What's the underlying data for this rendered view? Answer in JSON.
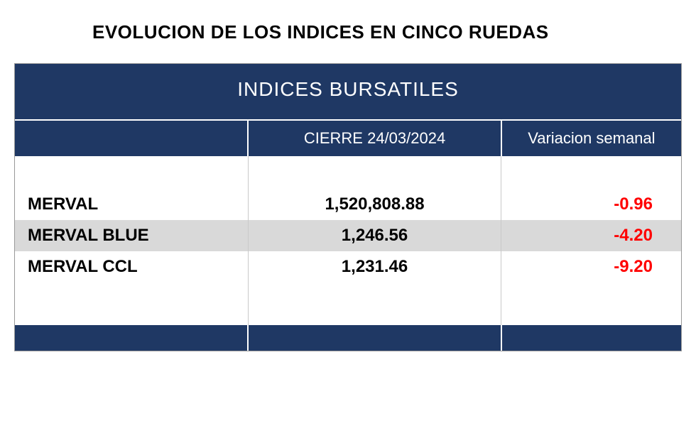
{
  "title": "EVOLUCION DE LOS INDICES EN CINCO RUEDAS",
  "table": {
    "type": "table",
    "title": "INDICES BURSATILES",
    "background_color": "#ffffff",
    "header_bg": "#1f3864",
    "header_fg": "#ffffff",
    "alt_row_bg": "#d9d9d9",
    "negative_color": "#ff0000",
    "grid_color": "#c9c9c9",
    "title_fontsize": 28,
    "header_fontsize": 22,
    "cell_fontsize": 24,
    "columns": [
      {
        "key": "name",
        "label": "",
        "width_pct": 35,
        "align": "left"
      },
      {
        "key": "close",
        "label": "CIERRE 24/03/2024",
        "width_pct": 38,
        "align": "center"
      },
      {
        "key": "variation",
        "label": "Variacion semanal",
        "width_pct": 27,
        "align": "right"
      }
    ],
    "rows": [
      {
        "name": "MERVAL",
        "close": "1,520,808.88",
        "variation": "-0.96",
        "alt": false
      },
      {
        "name": "MERVAL BLUE",
        "close": "1,246.56",
        "variation": "-4.20",
        "alt": true
      },
      {
        "name": "MERVAL CCL",
        "close": "1,231.46",
        "variation": "-9.20",
        "alt": false
      }
    ]
  }
}
